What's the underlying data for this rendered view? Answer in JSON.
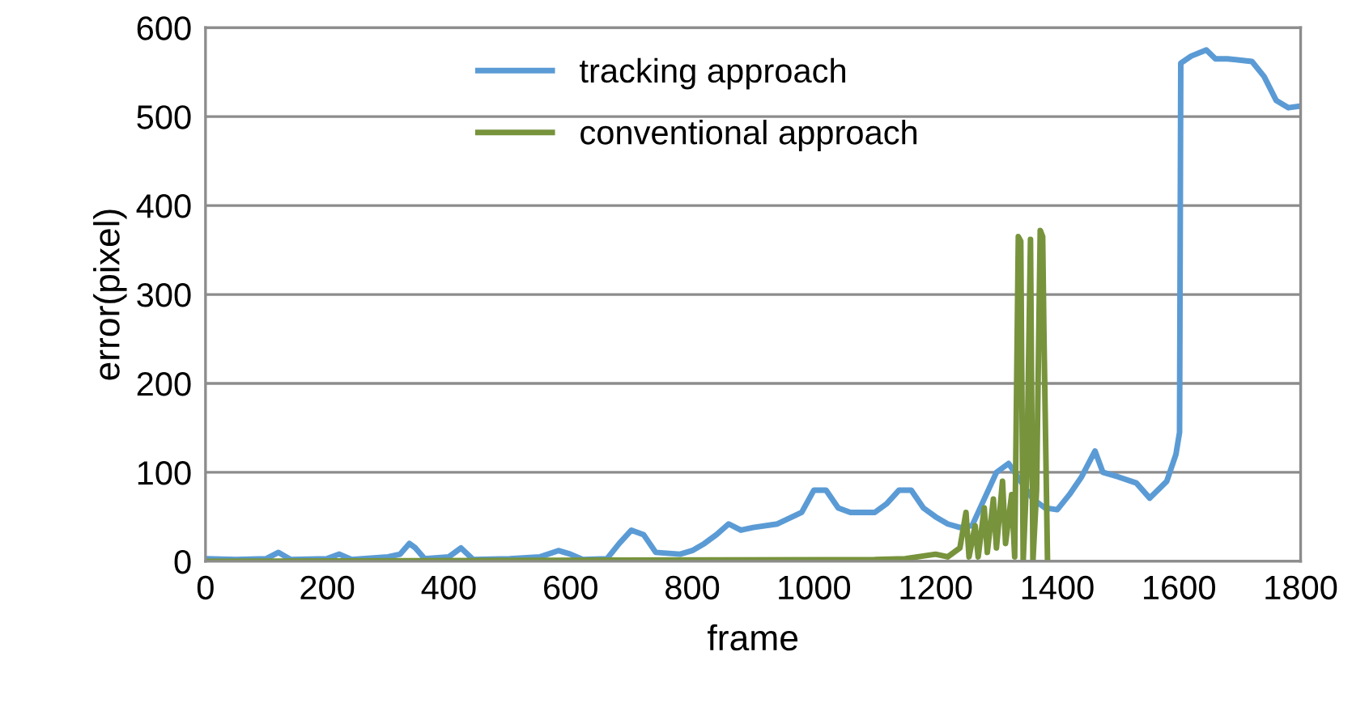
{
  "chart_data": {
    "type": "line",
    "xlabel": "frame",
    "ylabel": "error(pixel)",
    "xlim": [
      0,
      1800
    ],
    "xticks": [
      0,
      200,
      400,
      600,
      800,
      1000,
      1200,
      1400,
      1600,
      1800
    ],
    "ylim": [
      0,
      600
    ],
    "yticks": [
      0,
      100,
      200,
      300,
      400,
      500,
      600
    ],
    "grid": "y",
    "legend": "top",
    "series": [
      {
        "name": "tracking approach",
        "color": "#5b9bd5",
        "x": [
          0,
          50,
          100,
          120,
          140,
          200,
          220,
          240,
          300,
          320,
          335,
          345,
          360,
          400,
          420,
          440,
          500,
          550,
          580,
          600,
          620,
          660,
          680,
          700,
          720,
          740,
          780,
          800,
          820,
          840,
          860,
          880,
          900,
          940,
          980,
          1000,
          1020,
          1040,
          1060,
          1100,
          1120,
          1140,
          1160,
          1180,
          1200,
          1220,
          1240,
          1260,
          1280,
          1300,
          1320,
          1340,
          1360,
          1380,
          1400,
          1420,
          1440,
          1462,
          1475,
          1500,
          1530,
          1552,
          1580,
          1595,
          1601,
          1603,
          1620,
          1645,
          1660,
          1680,
          1720,
          1740,
          1760,
          1780,
          1800
        ],
        "values": [
          3,
          2,
          3,
          10,
          2,
          3,
          8,
          2,
          5,
          8,
          20,
          15,
          3,
          5,
          15,
          2,
          3,
          5,
          12,
          8,
          2,
          3,
          20,
          35,
          30,
          10,
          8,
          12,
          20,
          30,
          42,
          35,
          38,
          42,
          55,
          80,
          80,
          60,
          55,
          55,
          65,
          80,
          80,
          60,
          50,
          42,
          38,
          40,
          70,
          100,
          110,
          90,
          70,
          60,
          58,
          75,
          95,
          124,
          100,
          95,
          88,
          71,
          90,
          120,
          145,
          560,
          568,
          575,
          565,
          565,
          562,
          545,
          518,
          510,
          512
        ]
      },
      {
        "name": "conventional approach",
        "color": "#77933c",
        "x": [
          0,
          1100,
          1150,
          1200,
          1220,
          1240,
          1250,
          1255,
          1265,
          1270,
          1280,
          1285,
          1295,
          1300,
          1310,
          1315,
          1325,
          1330,
          1336,
          1340,
          1344,
          1350,
          1356,
          1360,
          1366,
          1372,
          1376,
          1378,
          1384
        ],
        "values": [
          0,
          2,
          3,
          8,
          5,
          15,
          55,
          5,
          40,
          5,
          60,
          10,
          70,
          15,
          90,
          20,
          75,
          5,
          365,
          360,
          0,
          100,
          362,
          0,
          80,
          372,
          365,
          260,
          0
        ]
      }
    ]
  }
}
